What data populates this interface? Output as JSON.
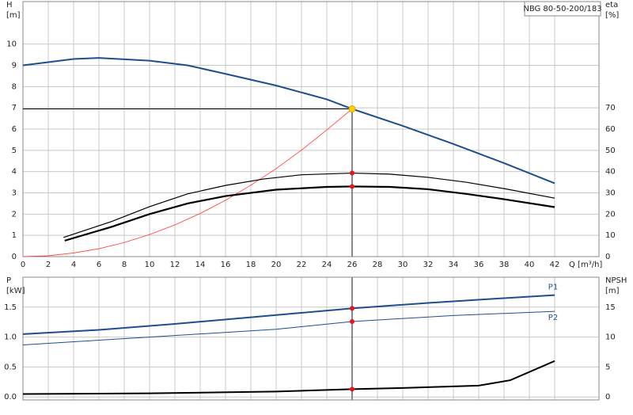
{
  "chart_data": [
    {
      "type": "line",
      "title": "NBG 80-50-200/183",
      "y_label": [
        "H",
        "[m]"
      ],
      "y2_label": [
        "eta",
        "[%]"
      ],
      "x_label": "Q [m³/h]",
      "xlim": [
        0,
        45.5
      ],
      "xticks": [
        0,
        2,
        4,
        6,
        8,
        10,
        12,
        14,
        16,
        18,
        20,
        22,
        24,
        26,
        28,
        30,
        32,
        34,
        36,
        38,
        40,
        42
      ],
      "ylim": [
        0,
        12
      ],
      "yticks": [
        0,
        1,
        2,
        3,
        4,
        5,
        6,
        7,
        8,
        9,
        10
      ],
      "y2lim": [
        0,
        120
      ],
      "y2ticks": [
        0,
        10,
        20,
        30,
        40,
        50,
        60,
        70
      ],
      "grid": true,
      "duty_q": 26,
      "series": [
        {
          "color": "#ff3b30",
          "width": 0.8,
          "x": [
            0,
            2,
            4,
            6,
            8,
            10,
            12,
            14,
            16,
            18,
            20,
            22,
            24,
            26
          ],
          "values": [
            0,
            0.04,
            0.17,
            0.37,
            0.66,
            1.04,
            1.49,
            2.03,
            2.65,
            3.36,
            4.14,
            5.01,
            5.96,
            6.95
          ]
        },
        {
          "color": "#000000",
          "width": 1.2,
          "axis": "y2",
          "x": [
            3.2,
            7,
            10,
            13,
            16,
            19,
            22,
            26,
            29,
            32,
            35,
            38,
            42
          ],
          "values": [
            9,
            16.5,
            23.5,
            29.5,
            33.5,
            36.5,
            38.5,
            39.3,
            38.8,
            37.3,
            35,
            32,
            27.5
          ]
        },
        {
          "color": "#000000",
          "width": 2.2,
          "axis": "y2",
          "x": [
            3.3,
            7,
            10,
            13,
            16,
            20,
            24,
            26,
            29,
            32,
            35,
            38,
            42
          ],
          "values": [
            7.5,
            14,
            20,
            25,
            28.5,
            31.5,
            32.8,
            33,
            32.8,
            31.7,
            29.5,
            27,
            23.3
          ]
        },
        {
          "color": "#1f4e8c",
          "width": 2,
          "x": [
            0,
            4,
            6,
            10,
            13,
            16,
            20,
            24,
            26,
            30,
            34,
            38,
            42
          ],
          "values": [
            9.0,
            9.3,
            9.35,
            9.22,
            9.0,
            8.6,
            8.05,
            7.4,
            6.95,
            6.15,
            5.3,
            4.4,
            3.45
          ]
        }
      ]
    },
    {
      "type": "line",
      "y_label": [
        "P",
        "[kW]"
      ],
      "y2_label": [
        "NPSH",
        "[m]"
      ],
      "xlim": [
        0,
        45.5
      ],
      "ylim": [
        -0.05,
        2.0
      ],
      "yticks": [
        {
          "value": 0,
          "label": "0.0"
        },
        0.5,
        {
          "value": 1,
          "label": "1.0"
        },
        1.5
      ],
      "y2lim": [
        -0.5,
        20
      ],
      "y2ticks": [
        0,
        5,
        10,
        15
      ],
      "grid": true,
      "series": [
        {
          "name": "P1",
          "color": "#1f4e8c",
          "width": 2,
          "x": [
            0,
            6,
            12,
            18,
            26,
            32,
            38,
            42
          ],
          "values": [
            1.05,
            1.12,
            1.22,
            1.33,
            1.48,
            1.57,
            1.65,
            1.7
          ]
        },
        {
          "name": "P2",
          "color": "#1f4e8c",
          "width": 1,
          "x": [
            0,
            10,
            20,
            26,
            34,
            42
          ],
          "values": [
            0.87,
            1.0,
            1.13,
            1.26,
            1.36,
            1.43
          ]
        },
        {
          "color": "#000000",
          "width": 2,
          "axis": "y2",
          "x": [
            0,
            10,
            20,
            26,
            30,
            36,
            38.5,
            42
          ],
          "values": [
            0.5,
            0.6,
            0.9,
            1.3,
            1.5,
            1.9,
            2.8,
            6.0
          ]
        }
      ]
    }
  ]
}
